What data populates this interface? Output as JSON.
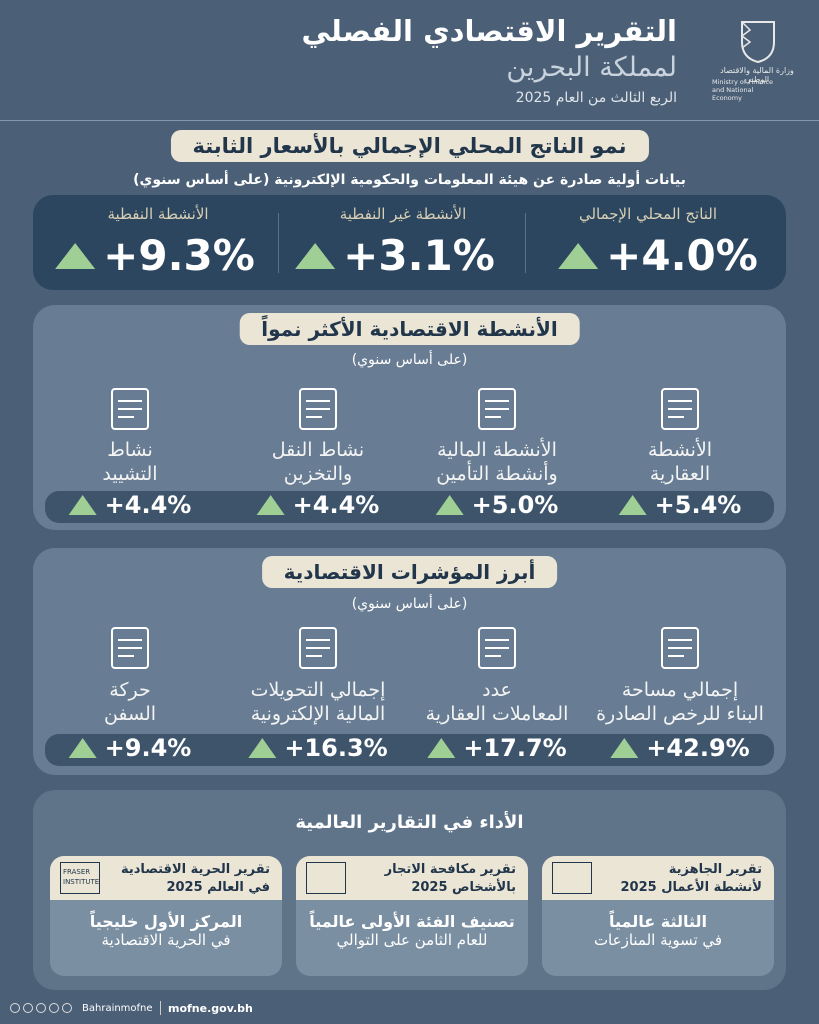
{
  "header": {
    "title": "التقرير الاقتصادي الفصلي",
    "subtitle": "لمملكة البحرين",
    "period": "الربع الثالث من العام 2025",
    "ministry_ar": "وزارة المالية والاقتصاد الوطني",
    "ministry_en": "Ministry of Finance and National Economy"
  },
  "gdp": {
    "title": "نمو الناتج المحلي الإجمالي بالأسعار الثابتة",
    "note": "بيانات أولية صادرة عن هيئة المعلومات والحكومية الإلكترونية (على أساس سنوي)",
    "items": [
      {
        "label": "الناتج المحلي الإجمالي",
        "value": "+4.0%"
      },
      {
        "label": "الأنشطة غير النفطية",
        "value": "+3.1%"
      },
      {
        "label": "الأنشطة النفطية",
        "value": "+9.3%"
      }
    ]
  },
  "sectors": {
    "title": "الأنشطة الاقتصادية الأكثر نمواً",
    "note": "(على أساس سنوي)",
    "items": [
      {
        "label": [
          "الأنشطة",
          "العقارية"
        ],
        "value": "+5.4%"
      },
      {
        "label": [
          "الأنشطة المالية",
          "وأنشطة التأمين"
        ],
        "value": "+5.0%"
      },
      {
        "label": [
          "نشاط النقل",
          "والتخزين"
        ],
        "value": "+4.4%"
      },
      {
        "label": [
          "نشاط",
          "التشييد"
        ],
        "value": "+4.4%"
      }
    ]
  },
  "indicators": {
    "title": "أبرز المؤشرات الاقتصادية",
    "note": "(على أساس سنوي)",
    "items": [
      {
        "label": [
          "إجمالي مساحة",
          "البناء للرخص الصادرة"
        ],
        "value": "+42.9%"
      },
      {
        "label": [
          "عدد",
          "المعاملات العقارية"
        ],
        "value": "+17.7%"
      },
      {
        "label": [
          "إجمالي التحويلات",
          "المالية الإلكترونية"
        ],
        "value": "+16.3%"
      },
      {
        "label": [
          "حركة",
          "السفن"
        ],
        "value": "+9.4%"
      }
    ]
  },
  "global": {
    "title": "الأداء في التقارير العالمية",
    "cards": [
      {
        "report": [
          "تقرير الجاهزية",
          "لأنشطة الأعمال 2025"
        ],
        "result": [
          "الثالثة عالمياً",
          "في تسوية المنازعات"
        ]
      },
      {
        "report": [
          "تقرير مكافحة الاتجار",
          "بالأشخاص 2025"
        ],
        "result": [
          "تصنيف الفئة الأولى عالمياً",
          "للعام الثامن على التوالي"
        ]
      },
      {
        "report": [
          "تقرير الحرية الاقتصادية",
          "في العالم 2025"
        ],
        "result": [
          "المركز الأول خليجياً",
          "في الحرية الاقتصادية"
        ],
        "logo": [
          "FRASER",
          "INSTITUTE"
        ]
      }
    ]
  },
  "footer": {
    "handle": "Bahrainmofne",
    "website": "mofne.gov.bh"
  }
}
